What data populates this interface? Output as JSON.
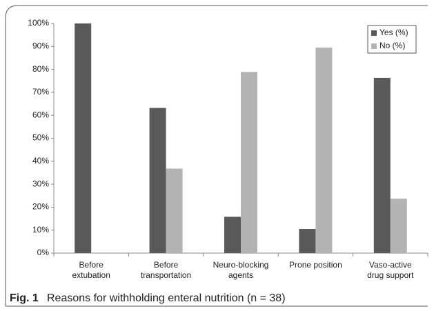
{
  "chart_data": {
    "type": "bar",
    "figure_label": "Fig. 1",
    "title": "Reasons for withholding enteral nutrition (n = 38)",
    "categories": [
      [
        "Before",
        "extubation"
      ],
      [
        "Before",
        "transportation"
      ],
      [
        "Neuro-blocking",
        "agents"
      ],
      [
        "Prone position"
      ],
      [
        "Vaso-active",
        "drug support"
      ]
    ],
    "series": [
      {
        "name": "Yes (%)",
        "color": "#595959",
        "values": [
          100,
          63.2,
          15.8,
          10.5,
          76.3
        ]
      },
      {
        "name": "No (%)",
        "color": "#b3b3b3",
        "values": [
          0,
          36.8,
          78.9,
          89.5,
          23.7
        ]
      }
    ],
    "ylim": [
      0,
      100
    ],
    "yticks": [
      {
        "value": 0,
        "label": "0%"
      },
      {
        "value": 10,
        "label": "10%"
      },
      {
        "value": 20,
        "label": "20%"
      },
      {
        "value": 30,
        "label": "30%"
      },
      {
        "value": 40,
        "label": "40%"
      },
      {
        "value": 50,
        "label": "50%"
      },
      {
        "value": 60,
        "label": "60%"
      },
      {
        "value": 70,
        "label": "70%"
      },
      {
        "value": 80,
        "label": "80%"
      },
      {
        "value": 90,
        "label": "90%"
      },
      {
        "value": 100,
        "label": "100%"
      }
    ],
    "grid": false,
    "legend": "top-right"
  }
}
